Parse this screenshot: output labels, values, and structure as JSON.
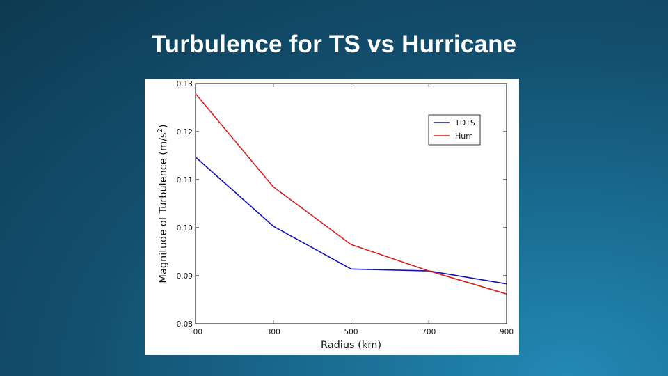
{
  "slide": {
    "title": "Turbulence for TS vs Hurricane"
  },
  "colors": {
    "background": "#14506f",
    "tdts": "#1010b8",
    "hurr": "#d81e1e"
  },
  "chart_data": {
    "type": "line",
    "title": "",
    "xlabel": "Radius (km)",
    "ylabel_main": "Magnitude of Turbulence (m/s",
    "ylabel_sup": "2",
    "ylabel_close": ")",
    "x": [
      100,
      300,
      500,
      700,
      900
    ],
    "x_tick_labels": [
      "100",
      "300",
      "500",
      "700",
      "900"
    ],
    "y_tick_values": [
      0.08,
      0.09,
      0.1,
      0.11,
      0.12,
      0.13
    ],
    "y_tick_labels": [
      "0.08",
      "0.09",
      "0.10",
      "0.11",
      "0.12",
      "0.13"
    ],
    "xlim": [
      100,
      900
    ],
    "ylim": [
      0.08,
      0.13
    ],
    "grid": false,
    "legend_position": "top-right",
    "series": [
      {
        "name": "TDTS",
        "color": "#1010b8",
        "values": [
          0.1147,
          0.1003,
          0.0914,
          0.091,
          0.0883
        ]
      },
      {
        "name": "Hurr",
        "color": "#d81e1e",
        "values": [
          0.1279,
          0.1085,
          0.0965,
          0.091,
          0.0862
        ]
      }
    ]
  }
}
